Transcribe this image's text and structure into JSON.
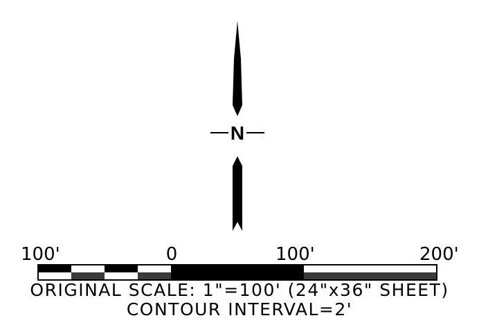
{
  "north_arrow": {
    "letter": "N"
  },
  "scale_bar": {
    "tick_labels": [
      "100'",
      "0",
      "100'",
      "200'"
    ],
    "colors": {
      "ink": "#000000",
      "dark_fill": "#3a3a3a",
      "white": "#ffffff"
    }
  },
  "notes": {
    "original_scale": "ORIGINAL SCALE: 1\"=100' (24\"x36\" SHEET)",
    "contour_interval": "CONTOUR INTERVAL=2'"
  }
}
